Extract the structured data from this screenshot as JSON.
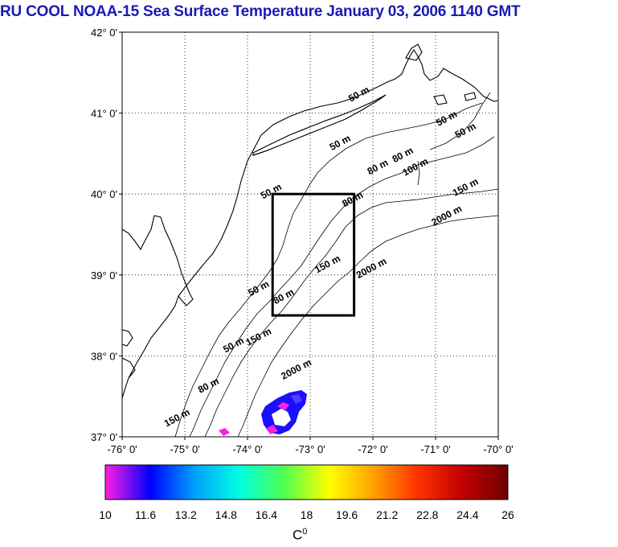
{
  "title": "RU COOL  NOAA-15 Sea Surface Temperature January 03, 2006 1140 GMT",
  "map": {
    "lon_range": [
      -76,
      -70
    ],
    "lat_range": [
      37,
      42
    ],
    "lat_ticks": [
      {
        "value": 42,
        "label": "42° 0'"
      },
      {
        "value": 41,
        "label": "41° 0'"
      },
      {
        "value": 40,
        "label": "40° 0'"
      },
      {
        "value": 39,
        "label": "39° 0'"
      },
      {
        "value": 38,
        "label": "38° 0'"
      },
      {
        "value": 37,
        "label": "37° 0'"
      }
    ],
    "lon_ticks": [
      {
        "value": -76,
        "label": "-76° 0'"
      },
      {
        "value": -75,
        "label": "-75° 0'"
      },
      {
        "value": -74,
        "label": "-74° 0'"
      },
      {
        "value": -73,
        "label": "-73° 0'"
      },
      {
        "value": -72,
        "label": "-72° 0'"
      },
      {
        "value": -71,
        "label": "-71° 0'"
      },
      {
        "value": -70,
        "label": "-70° 0'"
      }
    ],
    "grid": true,
    "study_box": {
      "lon": [
        -73.6,
        -72.3
      ],
      "lat": [
        38.5,
        40.0
      ]
    },
    "contour_labels": [
      {
        "text": "50 m",
        "lon": -72.2,
        "lat": 41.2
      },
      {
        "text": "50 m",
        "lon": -70.8,
        "lat": 40.9
      },
      {
        "text": "50 m",
        "lon": -70.5,
        "lat": 40.75
      },
      {
        "text": "50 m",
        "lon": -72.5,
        "lat": 40.6
      },
      {
        "text": "80 m",
        "lon": -71.5,
        "lat": 40.45
      },
      {
        "text": "80 m",
        "lon": -71.9,
        "lat": 40.3
      },
      {
        "text": "100 m",
        "lon": -71.3,
        "lat": 40.3
      },
      {
        "text": "150 m",
        "lon": -70.5,
        "lat": 40.05
      },
      {
        "text": "2000 m",
        "lon": -70.8,
        "lat": 39.7
      },
      {
        "text": "50 m",
        "lon": -73.6,
        "lat": 40.0
      },
      {
        "text": "80 m",
        "lon": -72.3,
        "lat": 39.9
      },
      {
        "text": "150 m",
        "lon": -72.7,
        "lat": 39.1
      },
      {
        "text": "2000 m",
        "lon": -72.0,
        "lat": 39.05
      },
      {
        "text": "50 m",
        "lon": -73.8,
        "lat": 38.8
      },
      {
        "text": "80 m",
        "lon": -73.4,
        "lat": 38.7
      },
      {
        "text": "50 m",
        "lon": -74.2,
        "lat": 38.1
      },
      {
        "text": "150 m",
        "lon": -73.8,
        "lat": 38.2
      },
      {
        "text": "2000 m",
        "lon": -73.2,
        "lat": 37.8
      },
      {
        "text": "80 m",
        "lon": -74.6,
        "lat": 37.6
      },
      {
        "text": "150 m",
        "lon": -75.1,
        "lat": 37.2
      }
    ]
  },
  "colorbar": {
    "min": 10,
    "max": 26,
    "labels": [
      "10",
      "11.6",
      "13.2",
      "14.8",
      "16.4",
      "18",
      "19.6",
      "21.2",
      "22.8",
      "24.4",
      "26"
    ],
    "colors": [
      "#ff1fe0",
      "#0000ff",
      "#00a0ff",
      "#00ffe0",
      "#50ff50",
      "#ffff00",
      "#ffa000",
      "#ff3000",
      "#c00000",
      "#700000"
    ],
    "units_label": "C",
    "units_superscript": "0"
  }
}
